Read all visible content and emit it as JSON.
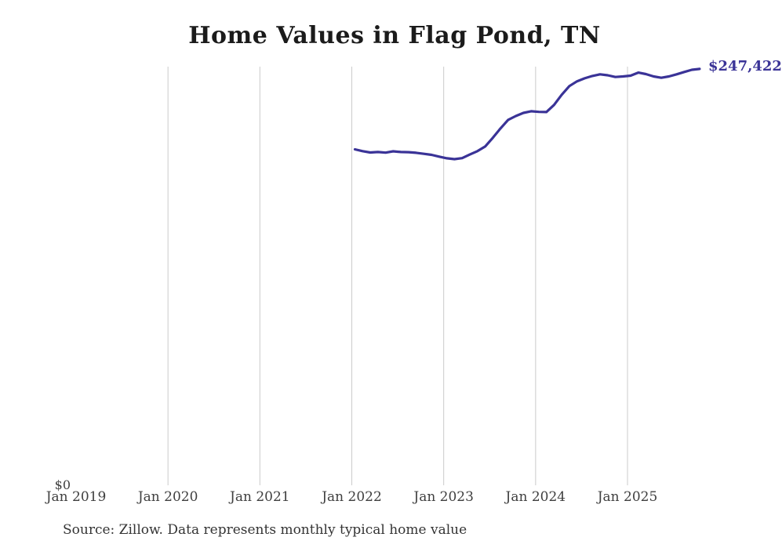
{
  "chart": {
    "title": "Home Values in Flag Pond, TN",
    "end_label": "$247,422",
    "y_zero_label": "$0",
    "source_note": "Source: Zillow. Data represents monthly typical home value",
    "line_color": "#3a3397",
    "grid_color": "#cbcbcb",
    "x_axis_labels": [
      "Jan 2019",
      "Jan 2020",
      "Jan 2021",
      "Jan 2022",
      "Jan 2023",
      "Jan 2024",
      "Jan 2025"
    ]
  },
  "chart_data": {
    "type": "line",
    "title": "Home Values in Flag Pond, TN",
    "series_name": "Monthly typical home value ($)",
    "x": [
      "Jan 2022",
      "Feb 2022",
      "Mar 2022",
      "Apr 2022",
      "May 2022",
      "Jun 2022",
      "Jul 2022",
      "Aug 2022",
      "Sep 2022",
      "Oct 2022",
      "Nov 2022",
      "Dec 2022",
      "Jan 2023",
      "Feb 2023",
      "Mar 2023",
      "Apr 2023",
      "May 2023",
      "Jun 2023",
      "Jul 2023",
      "Aug 2023",
      "Sep 2023",
      "Oct 2023",
      "Nov 2023",
      "Dec 2023",
      "Jan 2024",
      "Feb 2024",
      "Mar 2024",
      "Apr 2024",
      "May 2024",
      "Jun 2024",
      "Jul 2024",
      "Aug 2024",
      "Sep 2024",
      "Oct 2024",
      "Nov 2024",
      "Dec 2024",
      "Jan 2025",
      "Feb 2025",
      "Mar 2025",
      "Apr 2025",
      "May 2025",
      "Jun 2025",
      "Jul 2025",
      "Aug 2025",
      "Sep 2025",
      "Oct 2025"
    ],
    "values": [
      199100,
      198000,
      197200,
      197500,
      197100,
      197900,
      197500,
      197400,
      197000,
      196400,
      195800,
      194700,
      193700,
      193200,
      193800,
      196000,
      198000,
      200800,
      206000,
      211600,
      216800,
      219100,
      221000,
      222000,
      221600,
      221500,
      225800,
      231900,
      237100,
      240000,
      241800,
      243200,
      244200,
      243600,
      242600,
      242900,
      243400,
      245200,
      244300,
      242900,
      242100,
      242900,
      244200,
      245600,
      246900,
      247422
    ],
    "last_value_label": "$247,422",
    "xlabel": "",
    "ylabel": "",
    "x_tick_labels": [
      "Jan 2019",
      "Jan 2020",
      "Jan 2021",
      "Jan 2022",
      "Jan 2023",
      "Jan 2024",
      "Jan 2025"
    ],
    "y_tick_labels": [
      "$0"
    ],
    "ylim": [
      0,
      248800
    ],
    "grid": "vertical-only",
    "legend": "none",
    "annotation": "Source: Zillow. Data represents monthly typical home value"
  }
}
